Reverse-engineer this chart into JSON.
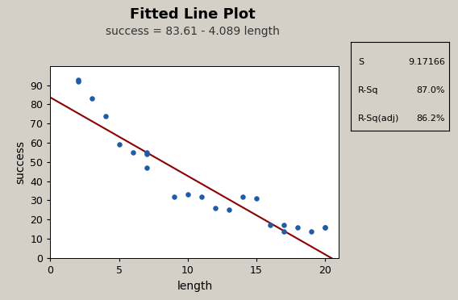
{
  "title": "Fitted Line Plot",
  "subtitle": "success = 83.61 - 4.089 length",
  "xlabel": "length",
  "ylabel": "success",
  "xlim": [
    0,
    21
  ],
  "ylim": [
    0,
    100
  ],
  "xticks": [
    0,
    5,
    10,
    15,
    20
  ],
  "yticks": [
    0,
    10,
    20,
    30,
    40,
    50,
    60,
    70,
    80,
    90
  ],
  "scatter_x": [
    2,
    2,
    3,
    4,
    5,
    6,
    7,
    7,
    7,
    9,
    10,
    11,
    12,
    13,
    14,
    15,
    16,
    17,
    17,
    18,
    19,
    20,
    20
  ],
  "scatter_y": [
    93,
    92,
    83,
    74,
    59,
    55,
    55,
    54,
    47,
    32,
    33,
    32,
    26,
    25,
    32,
    31,
    17,
    14,
    17,
    16,
    14,
    16,
    16
  ],
  "fit_intercept": 83.61,
  "fit_slope": -4.089,
  "scatter_color": "#1f5ca8",
  "line_color": "#8b0000",
  "bg_color": "#d4d0c8",
  "plot_bg_color": "#ffffff",
  "stats_S": "9.17166",
  "stats_Rsq": "87.0%",
  "stats_Rsqadj": "86.2%",
  "title_fontsize": 13,
  "subtitle_fontsize": 10,
  "axis_label_fontsize": 10,
  "tick_fontsize": 9
}
